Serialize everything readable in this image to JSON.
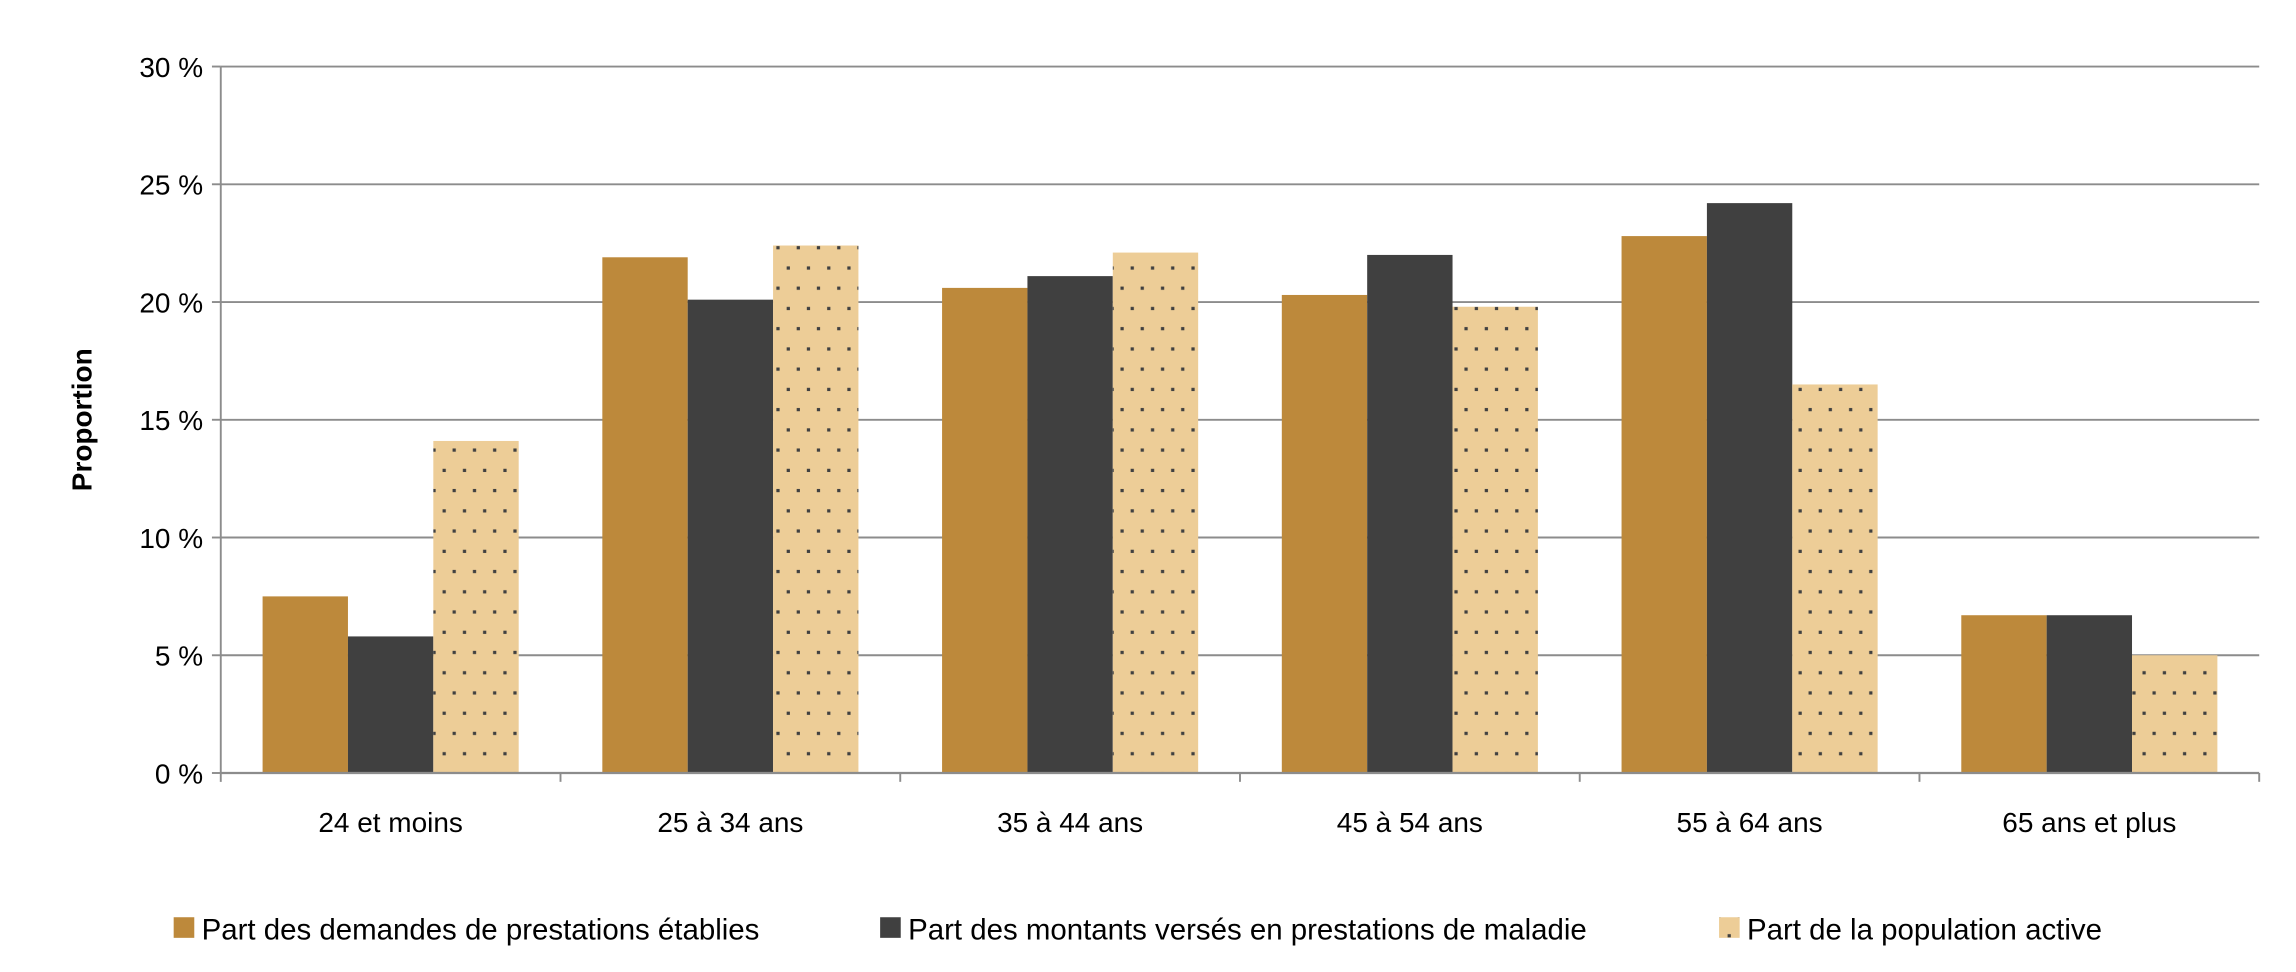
{
  "chart_data": {
    "type": "bar",
    "title": "",
    "xlabel": "",
    "ylabel": "Proportion",
    "ylim": [
      0,
      30
    ],
    "yticks": [
      "0 %",
      "5 %",
      "10 %",
      "15 %",
      "20 %",
      "25 %",
      "30 %"
    ],
    "grid": true,
    "legend_position": "bottom",
    "categories": [
      "24 et moins",
      "25 à 34 ans",
      "35 à 44 ans",
      "45 à 54 ans",
      "55 à 64 ans",
      "65 ans et plus"
    ],
    "series": [
      {
        "name": "Part des demandes de prestations établies",
        "color": "#BD893B",
        "values": [
          7.5,
          21.9,
          20.6,
          20.3,
          22.8,
          6.7
        ]
      },
      {
        "name": "Part des montants versés en prestations de maladie",
        "color": "#404040",
        "values": [
          5.8,
          20.1,
          21.1,
          22.0,
          24.2,
          6.7
        ]
      },
      {
        "name": "Part de la population active",
        "color": "#EDCD97",
        "pattern": "dotted",
        "values": [
          14.1,
          22.4,
          22.1,
          19.8,
          16.5,
          5.0
        ]
      }
    ]
  }
}
